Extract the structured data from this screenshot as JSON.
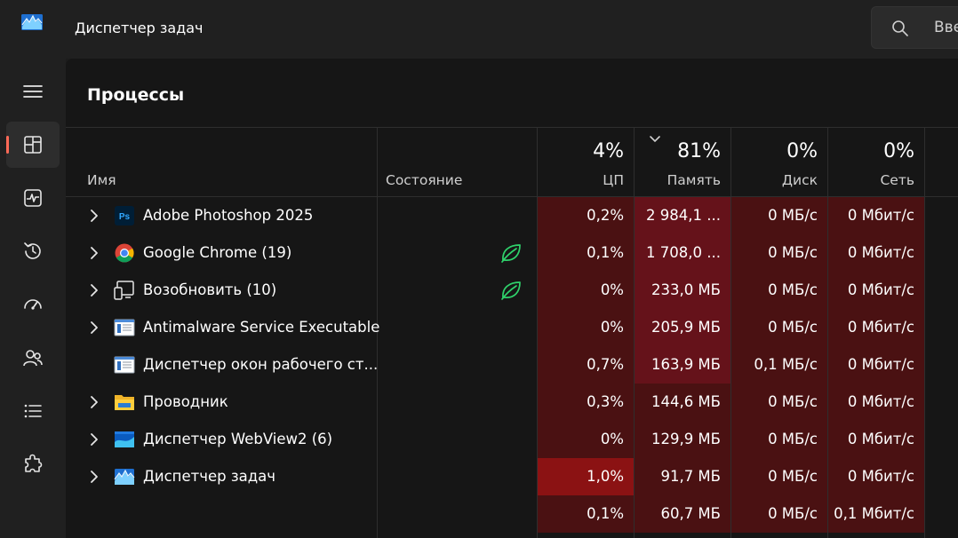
{
  "titlebar": {
    "title": "Диспетчер задач",
    "search_text": "Вве"
  },
  "page": {
    "title": "Процессы"
  },
  "columns": {
    "name": "Имя",
    "status": "Состояние",
    "cpu": {
      "pct": "4%",
      "label": "ЦП"
    },
    "memory": {
      "pct": "81%",
      "label": "Память"
    },
    "disk": {
      "pct": "0%",
      "label": "Диск"
    },
    "network": {
      "pct": "0%",
      "label": "Сеть"
    }
  },
  "colors": {
    "accent": "#ff6a57",
    "heat_low": "#4a1112",
    "heat_mid": "#65121a",
    "heat_high": "#8b1213",
    "eco_leaf": "#2fd26b"
  },
  "processes": [
    {
      "name": "Adobe Photoshop 2025",
      "icon": "photoshop-icon",
      "expandable": true,
      "eco": false,
      "cpu": "0,2%",
      "memory": "2 984,1 ...",
      "disk": "0 МБ/с",
      "network": "0 Мбит/с",
      "heat": {
        "cpu": "low",
        "memory": "mid",
        "disk": "low",
        "network": "low"
      }
    },
    {
      "name": "Google Chrome (19)",
      "icon": "chrome-icon",
      "expandable": true,
      "eco": true,
      "cpu": "0,1%",
      "memory": "1 708,0 ...",
      "disk": "0 МБ/с",
      "network": "0 Мбит/с",
      "heat": {
        "cpu": "low",
        "memory": "mid",
        "disk": "low",
        "network": "low"
      }
    },
    {
      "name": "Возобновить (10)",
      "icon": "resume-device-icon",
      "expandable": true,
      "eco": true,
      "cpu": "0%",
      "memory": "233,0 МБ",
      "disk": "0 МБ/с",
      "network": "0 Мбит/с",
      "heat": {
        "cpu": "low",
        "memory": "mid",
        "disk": "low",
        "network": "low"
      }
    },
    {
      "name": "Antimalware Service Executable",
      "icon": "service-window-icon",
      "expandable": true,
      "eco": false,
      "cpu": "0%",
      "memory": "205,9 МБ",
      "disk": "0 МБ/с",
      "network": "0 Мбит/с",
      "heat": {
        "cpu": "low",
        "memory": "mid",
        "disk": "low",
        "network": "low"
      }
    },
    {
      "name": "Диспетчер окон рабочего ст...",
      "icon": "service-window-icon",
      "expandable": false,
      "eco": false,
      "cpu": "0,7%",
      "memory": "163,9 МБ",
      "disk": "0,1 МБ/с",
      "network": "0 Мбит/с",
      "heat": {
        "cpu": "low",
        "memory": "mid",
        "disk": "low",
        "network": "low"
      }
    },
    {
      "name": "Проводник",
      "icon": "folder-icon",
      "expandable": true,
      "eco": false,
      "cpu": "0,3%",
      "memory": "144,6 МБ",
      "disk": "0 МБ/с",
      "network": "0 Мбит/с",
      "heat": {
        "cpu": "low",
        "memory": "low",
        "disk": "low",
        "network": "low"
      }
    },
    {
      "name": "Диспетчер WebView2 (6)",
      "icon": "webview-icon",
      "expandable": true,
      "eco": false,
      "cpu": "0%",
      "memory": "129,9 МБ",
      "disk": "0 МБ/с",
      "network": "0 Мбит/с",
      "heat": {
        "cpu": "low",
        "memory": "low",
        "disk": "low",
        "network": "low"
      }
    },
    {
      "name": "Диспетчер задач",
      "icon": "task-manager-icon",
      "expandable": true,
      "eco": false,
      "cpu": "1,0%",
      "memory": "91,7 МБ",
      "disk": "0 МБ/с",
      "network": "0 Мбит/с",
      "heat": {
        "cpu": "high",
        "memory": "low",
        "disk": "low",
        "network": "low"
      }
    },
    {
      "name": "",
      "icon": "",
      "expandable": false,
      "eco": false,
      "cpu": "0,1%",
      "memory": "60,7 МБ",
      "disk": "0 МБ/с",
      "network": "0,1 Мбит/с",
      "heat": {
        "cpu": "low",
        "memory": "low",
        "disk": "low",
        "network": "low"
      }
    }
  ]
}
